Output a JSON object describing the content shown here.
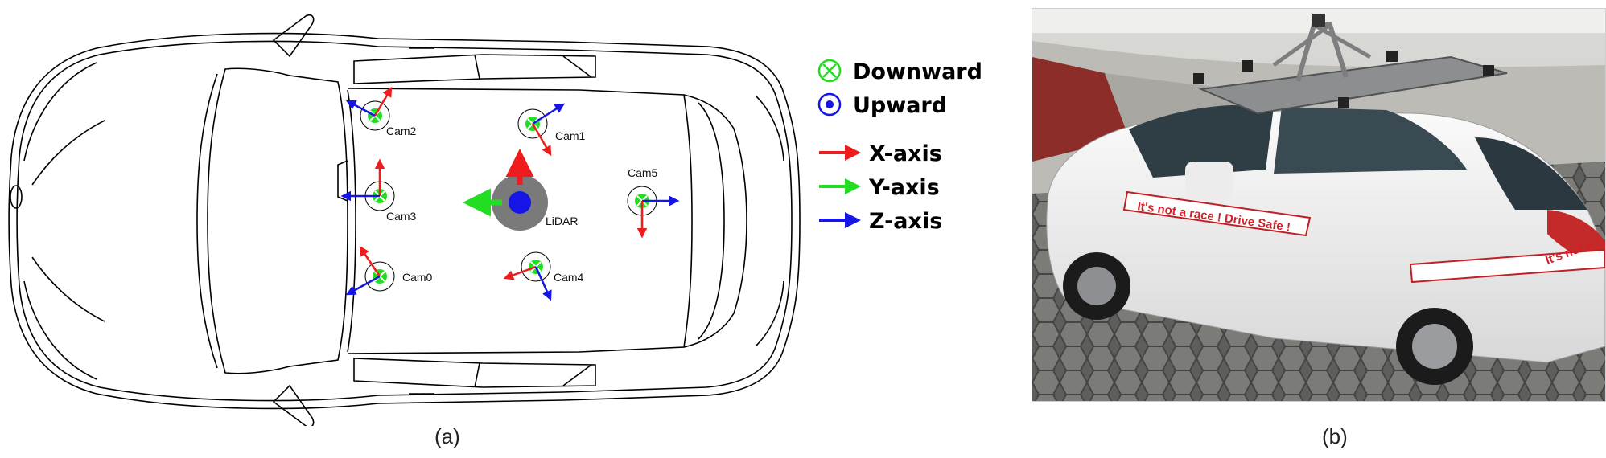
{
  "legend": {
    "downward": "Downward",
    "upward": "Upward",
    "x_axis": "X-axis",
    "y_axis": "Y-axis",
    "z_axis": "Z-axis"
  },
  "colors": {
    "x_axis": "#ee1c1c",
    "y_axis": "#22dd22",
    "z_axis": "#1515e6",
    "downward": "#22dd22",
    "upward": "#1515e6",
    "lidar_body": "#7a7a7a"
  },
  "sensors": {
    "cam0": "Cam0",
    "cam1": "Cam1",
    "cam2": "Cam2",
    "cam3": "Cam3",
    "cam4": "Cam4",
    "cam5": "Cam5",
    "lidar": "LiDAR"
  },
  "photo": {
    "banner_door": "It's not a race ! Drive Safe !",
    "banner_rear": "It's not a r..."
  },
  "captions": {
    "a": "(a)",
    "b": "(b)"
  }
}
